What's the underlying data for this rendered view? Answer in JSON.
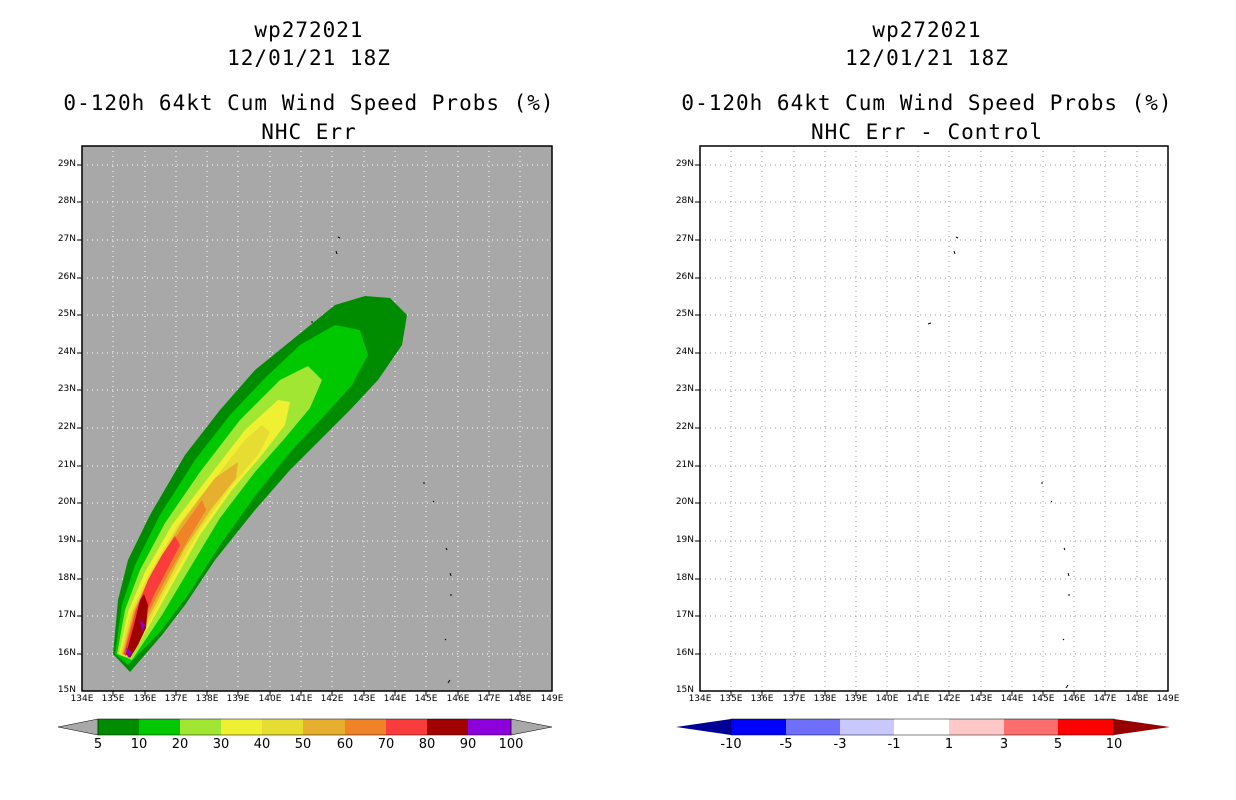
{
  "colors": {
    "land_gray": "#a8a8a8",
    "c5": "#008c00",
    "c10": "#00c800",
    "c20": "#a0e632",
    "c30": "#f0f032",
    "c40": "#e6dc32",
    "c50": "#e6af2d",
    "c60": "#f08228",
    "c70": "#fa3c3c",
    "c80": "#a00000",
    "c90": "#8c00dc",
    "d_neg10": "#000096",
    "d_neg5": "#0000ff",
    "d_neg3": "#6e6eff",
    "d_neg1": "#c8c8ff",
    "d_zero": "#ffffff",
    "d_pos1": "#ffc8c8",
    "d_pos3": "#ff6e6e",
    "d_pos5": "#ff0000",
    "d_pos10": "#960000"
  },
  "left_panel": {
    "storm_id": "wp272021",
    "datetime": "12/01/21 18Z",
    "product": "0-120h 64kt Cum Wind Speed Probs (%)",
    "subtitle": "NHC Err",
    "colorbar_labels": [
      "5",
      "10",
      "20",
      "30",
      "40",
      "50",
      "60",
      "70",
      "80",
      "90",
      "100"
    ]
  },
  "right_panel": {
    "storm_id": "wp272021",
    "datetime": "12/01/21 18Z",
    "product": "0-120h 64kt Cum Wind Speed Probs (%)",
    "subtitle": "NHC Err - Control",
    "colorbar_labels": [
      "-10",
      "-5",
      "-3",
      "-1",
      "1",
      "3",
      "5",
      "10"
    ]
  },
  "map": {
    "lat_labels": [
      "15N",
      "16N",
      "17N",
      "18N",
      "19N",
      "20N",
      "21N",
      "22N",
      "23N",
      "24N",
      "25N",
      "26N",
      "27N",
      "28N",
      "29N"
    ],
    "lon_labels": [
      "134E",
      "135E",
      "136E",
      "137E",
      "138E",
      "139E",
      "140E",
      "141E",
      "142E",
      "143E",
      "144E",
      "145E",
      "146E",
      "147E",
      "148E",
      "149E"
    ]
  }
}
